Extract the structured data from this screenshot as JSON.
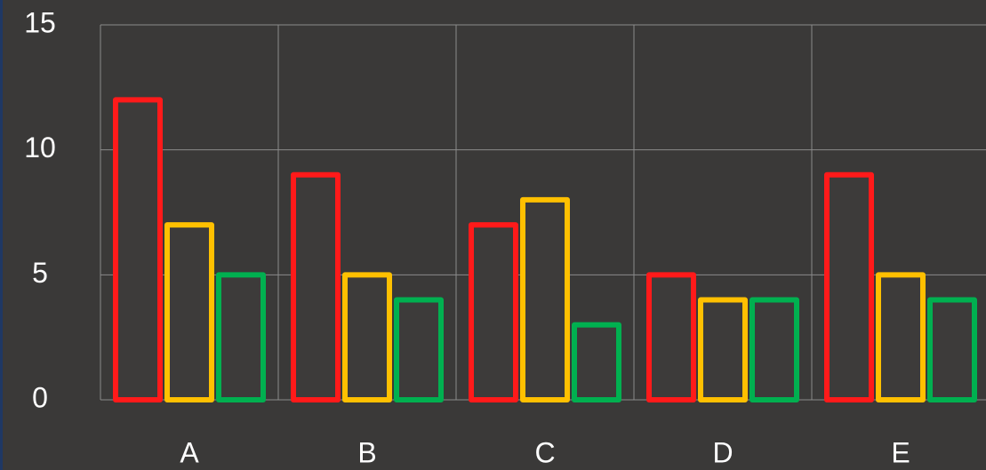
{
  "chart_data": {
    "type": "bar",
    "categories": [
      "A",
      "B",
      "C",
      "D",
      "E"
    ],
    "series": [
      {
        "color": "#ff1a1a",
        "values": [
          12,
          9,
          7,
          5,
          9
        ]
      },
      {
        "color": "#ffc000",
        "values": [
          7,
          5,
          8,
          4,
          5
        ]
      },
      {
        "color": "#00b050",
        "values": [
          5,
          4,
          3,
          4,
          4
        ]
      }
    ],
    "ylim": [
      0,
      15
    ],
    "yticks": [
      0,
      5,
      10,
      15
    ],
    "grid": true
  }
}
